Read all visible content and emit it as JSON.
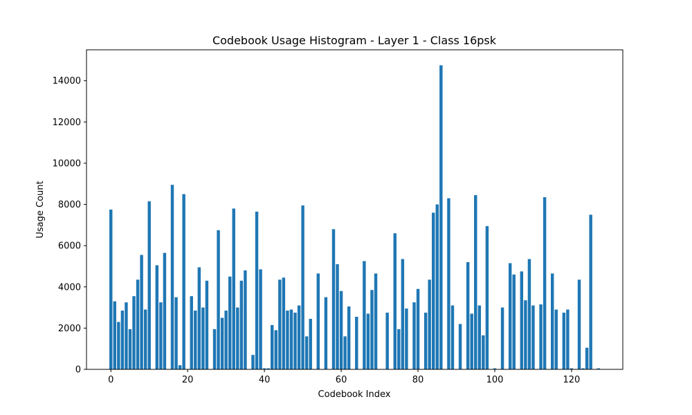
{
  "chart_data": {
    "type": "bar",
    "title": "Codebook Usage Histogram - Layer 1 - Class 16psk",
    "xlabel": "Codebook Index",
    "ylabel": "Usage Count",
    "xlim": [
      -6.35,
      133.35
    ],
    "ylim": [
      0,
      15500
    ],
    "xticks": [
      0,
      20,
      40,
      60,
      80,
      100,
      120
    ],
    "yticks": [
      0,
      2000,
      4000,
      6000,
      8000,
      10000,
      12000,
      14000
    ],
    "bar_color": "#1f77b4",
    "grid": false,
    "x": [
      0,
      1,
      2,
      3,
      4,
      5,
      6,
      7,
      8,
      9,
      10,
      11,
      12,
      13,
      14,
      15,
      16,
      17,
      18,
      19,
      20,
      21,
      22,
      23,
      24,
      25,
      26,
      27,
      28,
      29,
      30,
      31,
      32,
      33,
      34,
      35,
      36,
      37,
      38,
      39,
      40,
      41,
      42,
      43,
      44,
      45,
      46,
      47,
      48,
      49,
      50,
      51,
      52,
      53,
      54,
      55,
      56,
      57,
      58,
      59,
      60,
      61,
      62,
      63,
      64,
      65,
      66,
      67,
      68,
      69,
      70,
      71,
      72,
      73,
      74,
      75,
      76,
      77,
      78,
      79,
      80,
      81,
      82,
      83,
      84,
      85,
      86,
      87,
      88,
      89,
      90,
      91,
      92,
      93,
      94,
      95,
      96,
      97,
      98,
      99,
      100,
      101,
      102,
      103,
      104,
      105,
      106,
      107,
      108,
      109,
      110,
      111,
      112,
      113,
      114,
      115,
      116,
      117,
      118,
      119,
      120,
      121,
      122,
      123,
      124,
      125,
      126,
      127
    ],
    "values": [
      7750,
      3300,
      2300,
      2850,
      3250,
      1950,
      3550,
      4350,
      5550,
      2900,
      8150,
      0,
      5050,
      3250,
      5650,
      0,
      8950,
      3500,
      200,
      8500,
      0,
      3550,
      2850,
      4950,
      3000,
      4300,
      0,
      1950,
      6750,
      2500,
      2850,
      4500,
      7800,
      3000,
      4300,
      4800,
      0,
      700,
      7650,
      4850,
      50,
      50,
      2150,
      1900,
      4350,
      4450,
      2850,
      2900,
      2750,
      3100,
      7950,
      1600,
      2450,
      0,
      4650,
      0,
      3500,
      0,
      6800,
      5100,
      3800,
      1600,
      3050,
      0,
      2550,
      0,
      5250,
      2700,
      3850,
      4650,
      0,
      0,
      2750,
      0,
      6600,
      1950,
      5350,
      2950,
      0,
      3250,
      3900,
      0,
      2750,
      4350,
      7600,
      8000,
      14750,
      0,
      8300,
      3100,
      0,
      2200,
      0,
      5200,
      2700,
      8450,
      3100,
      1650,
      6950,
      0,
      50,
      0,
      3000,
      0,
      5150,
      4600,
      0,
      4750,
      3350,
      5350,
      3100,
      0,
      3150,
      8350,
      0,
      4650,
      2900,
      0,
      2750,
      2900,
      50,
      0,
      4350,
      50,
      1050,
      7500,
      0,
      50
    ]
  }
}
